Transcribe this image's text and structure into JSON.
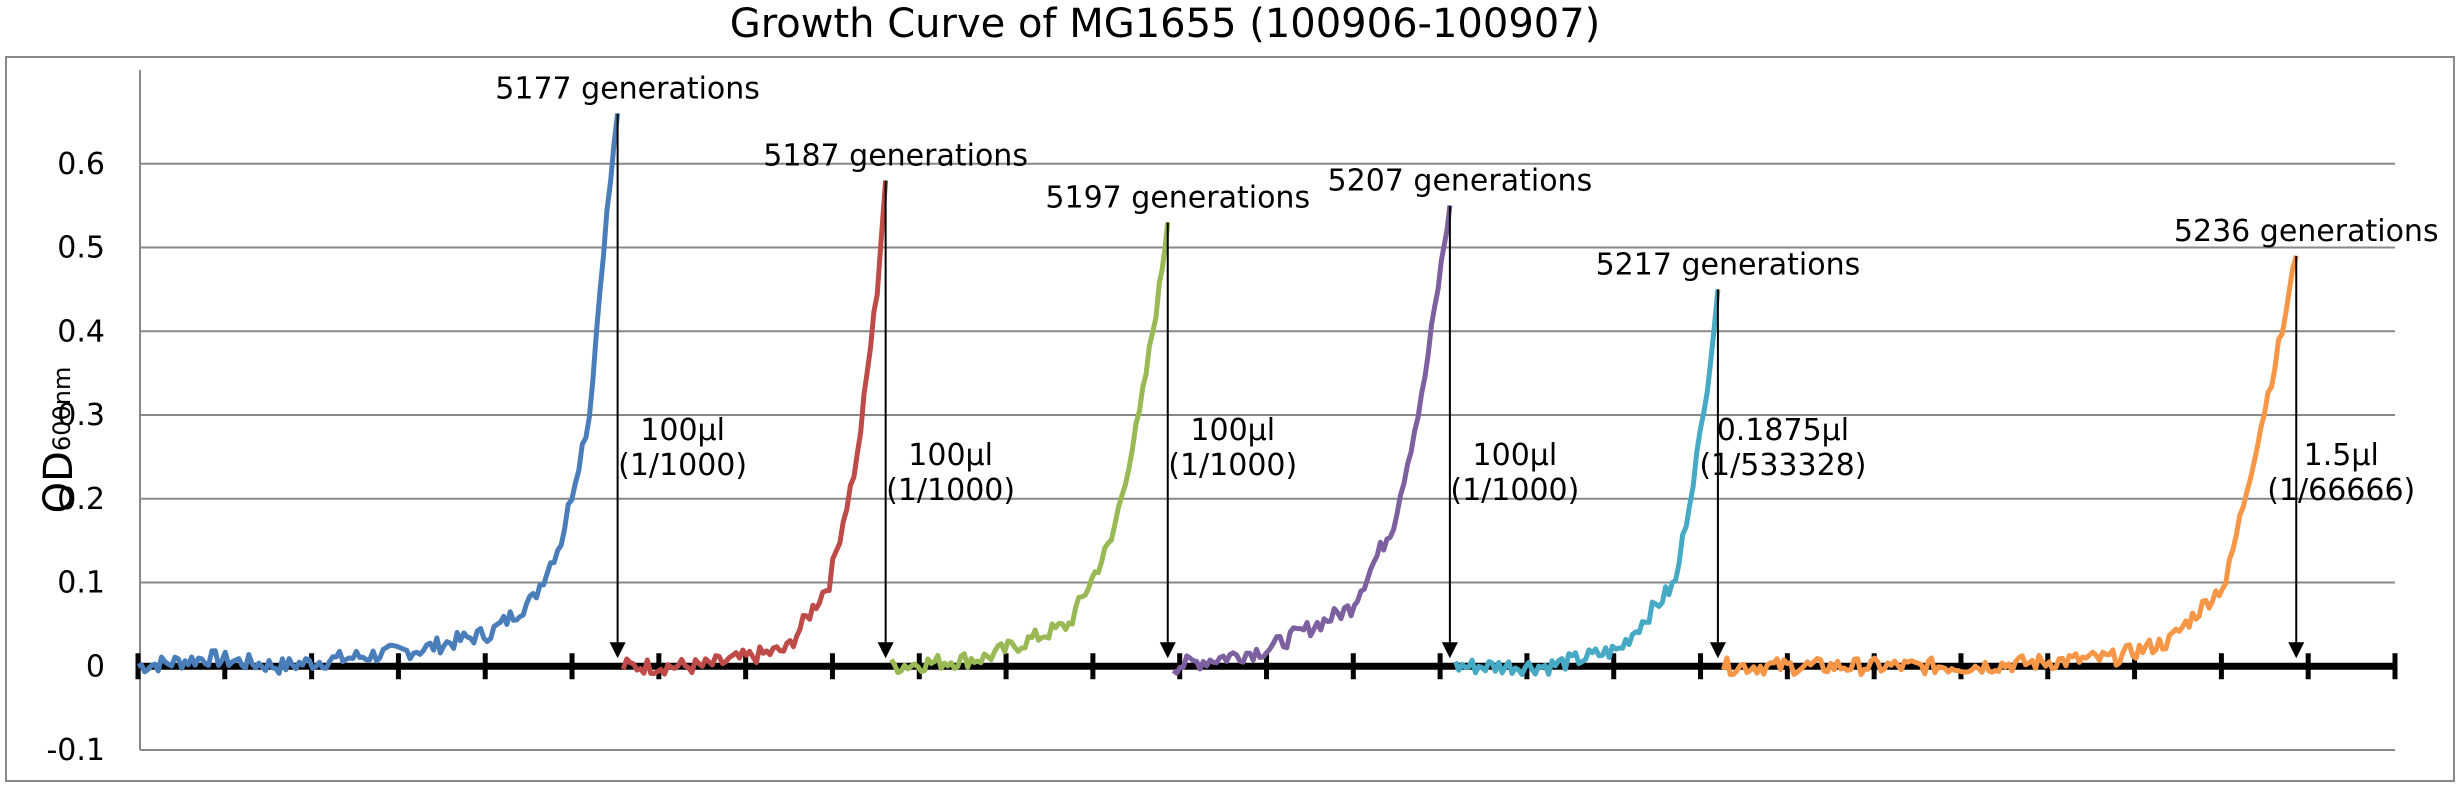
{
  "chart_data": {
    "type": "line",
    "title": "Growth Curve of MG1655 (100906-100907)",
    "ylabel": "OD",
    "ylabel_sub": "600nm",
    "xlabel": "",
    "ylim": [
      -0.1,
      0.7
    ],
    "yticks": [
      -0.1,
      0,
      0.1,
      0.2,
      0.3,
      0.4,
      0.5,
      0.6
    ],
    "ytick_labels": [
      "-0.1",
      "0",
      "0.1",
      "0.2",
      "0.3",
      "0.4",
      "0.5",
      "0.6"
    ],
    "grid": true,
    "legend": "none",
    "series": [
      {
        "color": "#4a7ebb",
        "x": [
          0,
          25,
          50,
          75,
          100,
          125,
          140,
          150,
          160,
          165,
          170
        ],
        "y": [
          0.0,
          0.01,
          0.0,
          0.01,
          0.02,
          0.04,
          0.08,
          0.15,
          0.3,
          0.5,
          0.66
        ]
      },
      {
        "color": "#be4b48",
        "x": [
          172,
          200,
          230,
          245,
          255,
          262,
          265
        ],
        "y": [
          0.0,
          0.0,
          0.02,
          0.1,
          0.25,
          0.45,
          0.58
        ]
      },
      {
        "color": "#98b954",
        "x": [
          267,
          300,
          330,
          345,
          355,
          362,
          365
        ],
        "y": [
          0.0,
          0.01,
          0.05,
          0.15,
          0.3,
          0.45,
          0.53
        ]
      },
      {
        "color": "#7d60a0",
        "x": [
          367,
          400,
          430,
          445,
          455,
          462,
          465
        ],
        "y": [
          0.0,
          0.02,
          0.07,
          0.17,
          0.32,
          0.48,
          0.55
        ]
      },
      {
        "color": "#46aac5",
        "x": [
          467,
          500,
          525,
          545,
          555,
          560
        ],
        "y": [
          0.0,
          0.0,
          0.02,
          0.1,
          0.3,
          0.45
        ]
      },
      {
        "color": "#f79646",
        "x": [
          562,
          600,
          650,
          700,
          720,
          740,
          750,
          760,
          765
        ],
        "y": [
          0.0,
          0.0,
          0.0,
          0.01,
          0.03,
          0.1,
          0.25,
          0.4,
          0.49
        ]
      }
    ],
    "annotations": [
      {
        "generations": "5177 generations",
        "volume": "100μl",
        "dilution": "(1/1000)",
        "x": 170,
        "y": 0.66
      },
      {
        "generations": "5187 generations",
        "volume": "100μl",
        "dilution": "(1/1000)",
        "x": 265,
        "y": 0.58
      },
      {
        "generations": "5197 generations",
        "volume": "100μl",
        "dilution": "(1/1000)",
        "x": 365,
        "y": 0.53
      },
      {
        "generations": "5207 generations",
        "volume": "100μl",
        "dilution": "(1/1000)",
        "x": 465,
        "y": 0.55
      },
      {
        "generations": "5217 generations",
        "volume": "0.1875μl",
        "dilution": "(1/533328)",
        "x": 560,
        "y": 0.45
      },
      {
        "generations": "5236 generations",
        "volume": "1.5μl",
        "dilution": "(1/66666)",
        "x": 765,
        "y": 0.49
      }
    ]
  }
}
